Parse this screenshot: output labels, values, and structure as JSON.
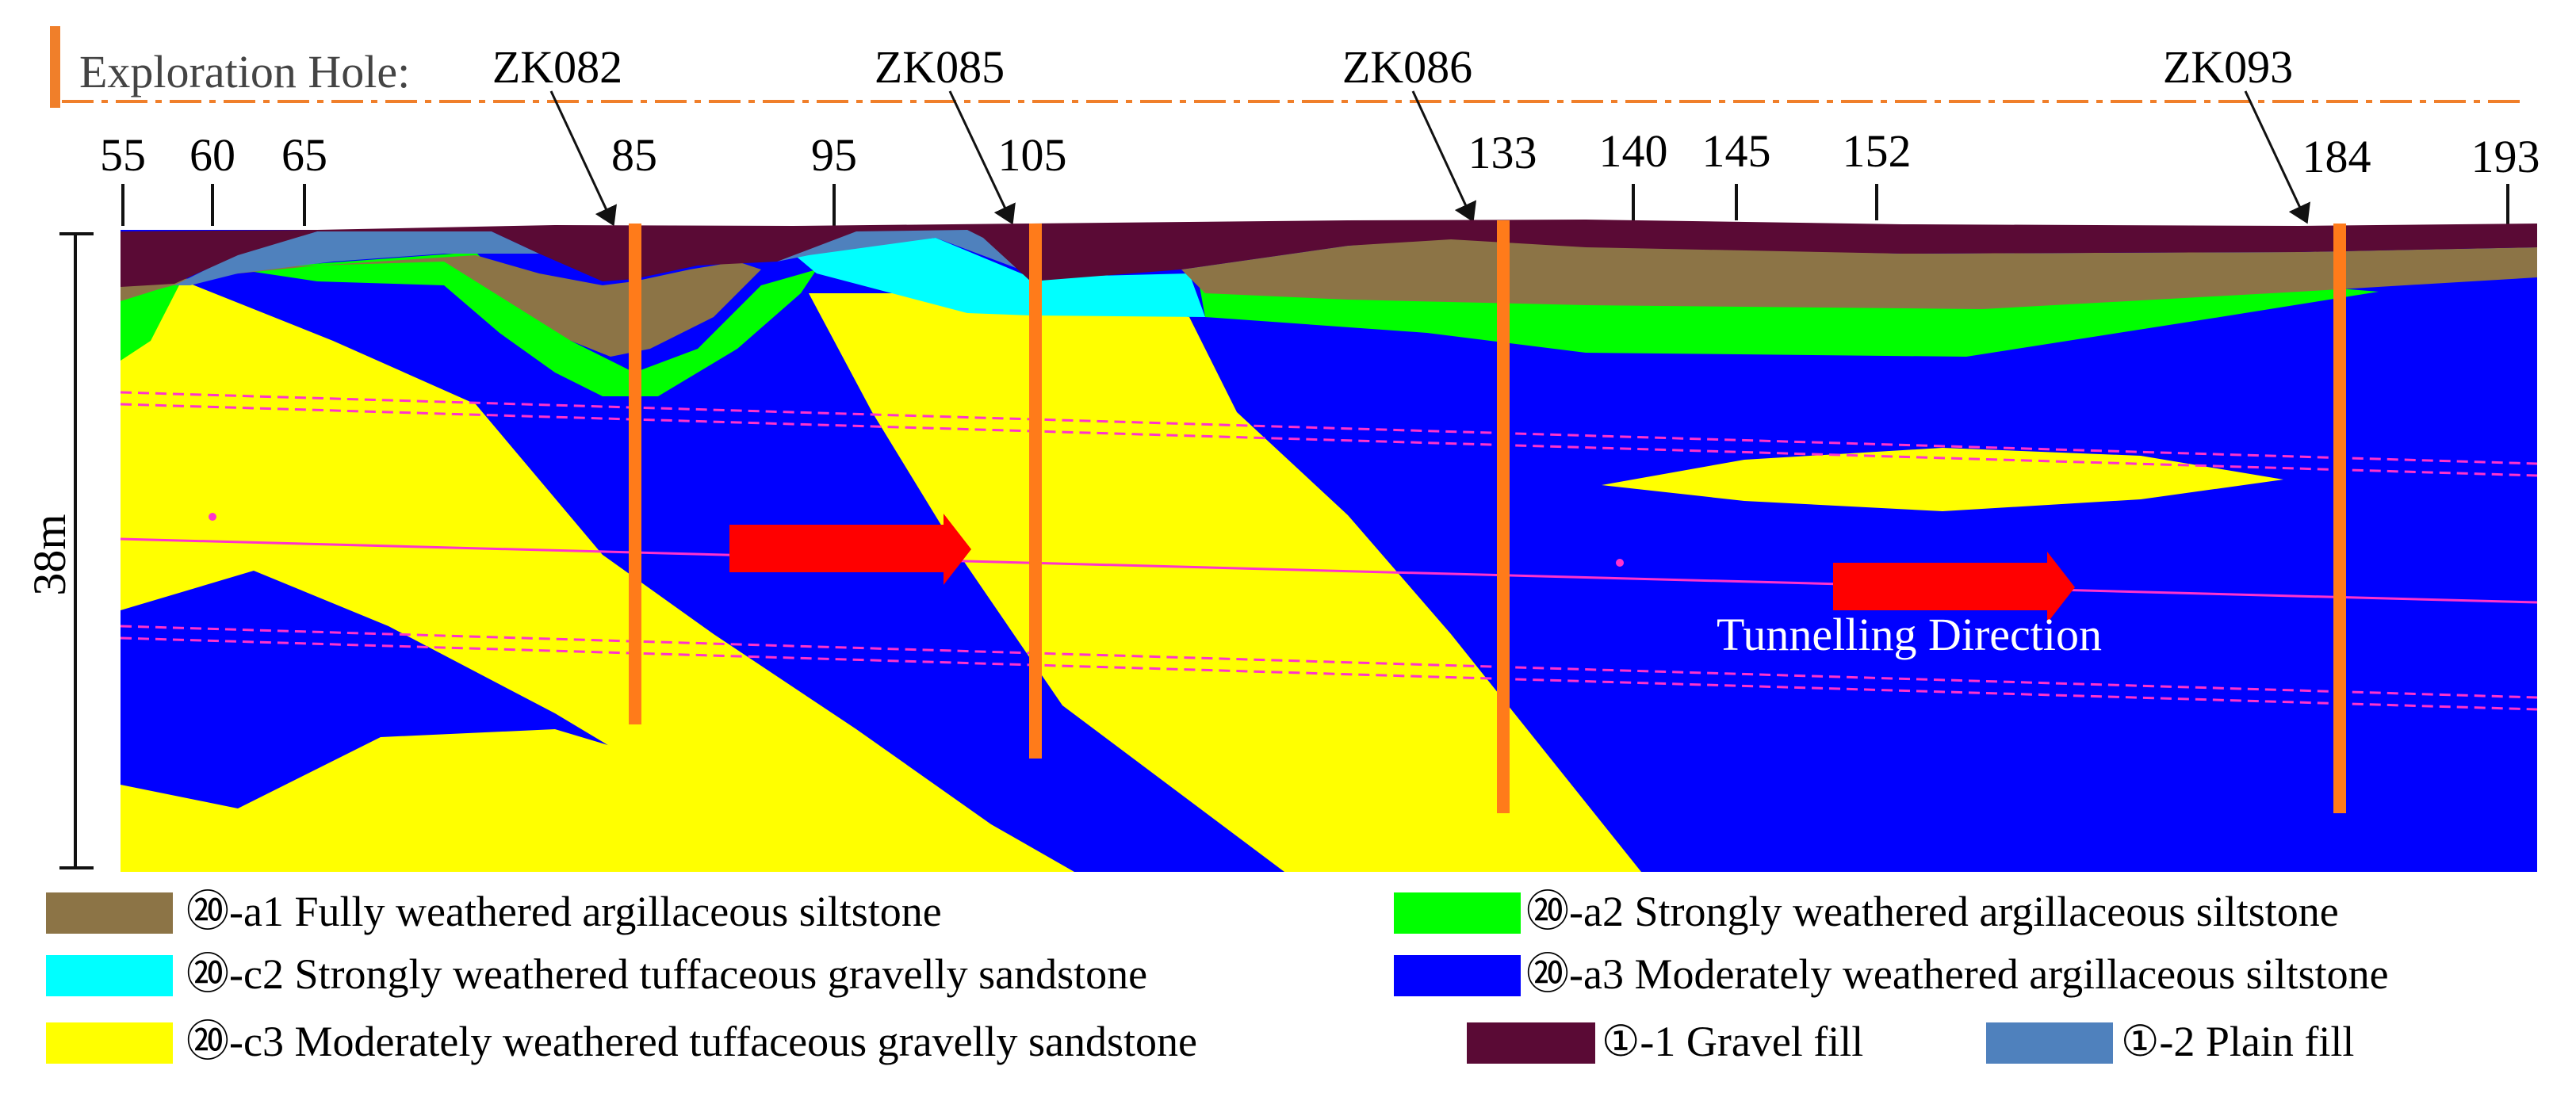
{
  "title": {
    "label": "Exploration Hole:",
    "accent_color": "#f07f2a"
  },
  "boreholes": [
    {
      "id": "ZK082",
      "station": "85",
      "color": "#ff7b1a"
    },
    {
      "id": "ZK085",
      "station": "105",
      "color": "#ff7b1a"
    },
    {
      "id": "ZK086",
      "station": "133",
      "color": "#ff7b1a"
    },
    {
      "id": "ZK093",
      "station": "184",
      "color": "#ff7b1a"
    }
  ],
  "stations": [
    "55",
    "60",
    "65",
    "85",
    "95",
    "105",
    "133",
    "140",
    "145",
    "152",
    "184",
    "193"
  ],
  "scale": {
    "label": "38m"
  },
  "annotation": {
    "label": "Tunnelling Direction",
    "arrow_color": "#ff0000"
  },
  "tunnel": {
    "line_color": "#ff33cc"
  },
  "legend": [
    {
      "key": "a1",
      "label": "⑳-a1 Fully weathered argillaceous siltstone",
      "color": "#8c7446"
    },
    {
      "key": "a2",
      "label": "⑳-a2 Strongly weathered argillaceous siltstone",
      "color": "#00ff00"
    },
    {
      "key": "c2",
      "label": "⑳-c2 Strongly weathered tuffaceous gravelly sandstone",
      "color": "#00ffff"
    },
    {
      "key": "a3",
      "label": "⑳-a3 Moderately weathered argillaceous siltstone",
      "color": "#0000ff"
    },
    {
      "key": "c3",
      "label": "⑳-c3 Moderately weathered tuffaceous gravelly sandstone",
      "color": "#ffff00"
    },
    {
      "key": "g1",
      "label": "①-1 Gravel fill",
      "color": "#5a0a35"
    },
    {
      "key": "p2",
      "label": "①-2 Plain fill",
      "color": "#4f81bd"
    }
  ]
}
